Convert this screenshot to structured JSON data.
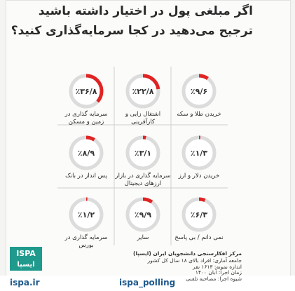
{
  "title_lines": [
    "اگر مبلغی پول در اختیار داشته باشید",
    "ترجیح می‌دهید در کجا سرمایه‌گذاری کنید؟"
  ],
  "chart_data": {
    "type": "donut",
    "categories": [
      "خریدن طلا و سکه",
      "اشتغال زایی و کارآفرینی",
      "سرمایه گذاری در زمین و مسکن",
      "خریدن دلار و ارز",
      "سرمایه گذاری در بازار ارزهای دیجیتال",
      "پس انداز در بانک",
      "نمی دانم / بی پاسخ",
      "سایر",
      "سرمایه گذاری در بورس"
    ],
    "values": [
      9.6,
      22.8,
      36.8,
      1.3,
      3.1,
      8.9,
      6.3,
      9.9,
      1.2
    ],
    "value_labels": [
      "٪۹/۶",
      "٪۲۲/۸",
      "٪۳۶/۸",
      "٪۱/۳",
      "٪۳/۱",
      "٪۸/۹",
      "٪۶/۳",
      "٪۹/۹",
      "٪۱/۲"
    ],
    "color": "#e02424",
    "track_color": "#dcdcdc"
  },
  "source": {
    "org": "مرکز افکارسنجی دانشجویان ایران (ایسپا)",
    "lines": [
      "جامعه آماری: افراد بالای ۱۸ سال کل کشور",
      "اندازه نمونه: ۱۶۱۳ نفر",
      "زمان اجرا: آبان ۱۴۰۰",
      "شیوه اجرا: مصاحبه تلفنی"
    ]
  },
  "logo": {
    "latin": "ISPA",
    "persian": "ایسپا"
  },
  "social": {
    "site": "ispa.ir",
    "handle": "ispa_polling"
  }
}
